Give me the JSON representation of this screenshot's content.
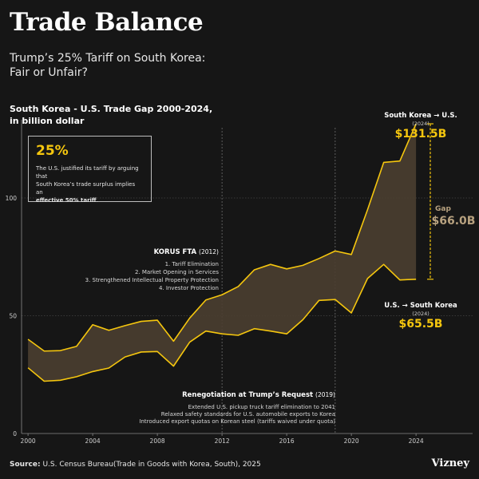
{
  "header": {
    "title": "Trade Balance",
    "subtitle_line1": "Trump’s 25% Tariff on South Korea:",
    "subtitle_line2": "Fair or Unfair?",
    "chart_title_line1": "South Korea - U.S. Trade Gap 2000-2024,",
    "chart_title_line2": "in billion dollar"
  },
  "callout": {
    "value": "25%",
    "text_line1": "The U.S. justified its tariff by arguing that",
    "text_line2": "South Korea’s trade surplus implies an",
    "text_bold": "effective 50% tariff",
    "text_end": "."
  },
  "annotations": {
    "korus_title": "KORUS FTA",
    "korus_year": "(2012)",
    "korus_items": [
      "1. Tariff Elimination",
      "2. Market Opening in Services",
      "3. Strengthened Intellectual Property Protection",
      "4. Investor Protection"
    ],
    "reneg_title": "Renegotiation at Trump’s Request",
    "reneg_year": "(2019)",
    "reneg_items": [
      "Extended U.S. pickup truck tariff elimination to 2041",
      "Relaxed safety standards for U.S. automobile exports to Korea",
      "Introduced export quotas on Korean steel (tariffs waived under quota)"
    ],
    "kr_to_us_label": "South Korea → U.S.",
    "kr_to_us_year": "(2024)",
    "kr_to_us_value": "$131.5B",
    "us_to_kr_label": "U.S. → South Korea",
    "us_to_kr_year": "(2024)",
    "us_to_kr_value": "$65.5B",
    "gap_label": "Gap",
    "gap_value": "$66.0B"
  },
  "footer": {
    "source_label": "Source:",
    "source_text": "U.S. Census Bureau(Trade in Goods with Korea, South), 2025",
    "brand": "Vizney"
  },
  "colors": {
    "background": "#161616",
    "line": "#f5c60e",
    "fill": "#4a3e30",
    "gap_text": "#b7a17f",
    "grid": "#5a5a5a"
  },
  "chart_data": {
    "type": "area",
    "x": [
      2000,
      2001,
      2002,
      2003,
      2004,
      2005,
      2006,
      2007,
      2008,
      2009,
      2010,
      2011,
      2012,
      2013,
      2014,
      2015,
      2016,
      2017,
      2018,
      2019,
      2020,
      2021,
      2022,
      2023,
      2024
    ],
    "series": [
      {
        "name": "South Korea → U.S.",
        "values": [
          40,
          35,
          35.2,
          37,
          46.2,
          43.8,
          45.8,
          47.6,
          48.1,
          39.2,
          49,
          56.7,
          58.9,
          62.4,
          69.5,
          71.8,
          69.9,
          71.4,
          74.3,
          77.5,
          76,
          95,
          115.1,
          115.7,
          131.5
        ]
      },
      {
        "name": "U.S. → South Korea",
        "values": [
          27.9,
          22.2,
          22.6,
          24.1,
          26.3,
          27.8,
          32.5,
          34.6,
          34.8,
          28.6,
          38.8,
          43.5,
          42.3,
          41.7,
          44.5,
          43.5,
          42.3,
          48.3,
          56.5,
          56.9,
          51.2,
          65.8,
          71.8,
          65.2,
          65.5
        ]
      }
    ],
    "xticks": [
      2000,
      2004,
      2008,
      2012,
      2016,
      2020,
      2024
    ],
    "yticks": [
      0,
      50,
      100
    ],
    "xlim": [
      1999.6,
      2027.5
    ],
    "ylim": [
      0,
      140
    ],
    "reference_years": [
      2012,
      2019
    ],
    "xlabel": "",
    "ylabel": "",
    "grid": true
  }
}
